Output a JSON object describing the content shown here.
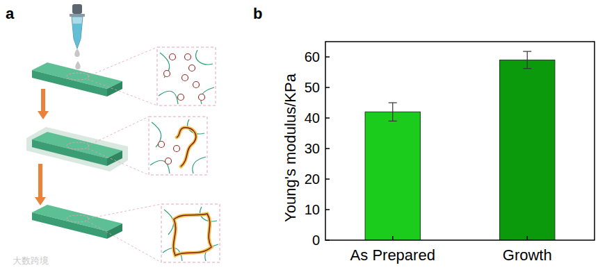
{
  "panel_labels": [
    "a",
    "b"
  ],
  "watermark": "大数跨境",
  "chart_data": {
    "type": "bar",
    "categories": [
      "As Prepared",
      "Growth"
    ],
    "values": [
      42,
      59
    ],
    "errors": [
      3,
      2.8
    ],
    "colors": [
      "#1ccc1c",
      "#0b9a0b"
    ],
    "ylabel": "Young's modulus/KPa",
    "ylim": [
      0,
      65
    ],
    "yticks": [
      0,
      10,
      20,
      30,
      40,
      50,
      60
    ]
  }
}
